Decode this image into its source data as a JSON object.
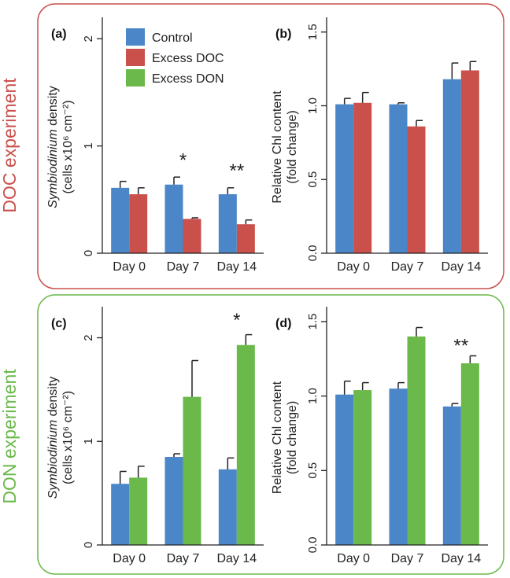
{
  "colors": {
    "control": "#4a86c8",
    "doc": "#c9504b",
    "don": "#6ab94a",
    "doc_frame": "#c9504b",
    "don_frame": "#6ab94a",
    "doc_title": "#c9504b",
    "don_title": "#6ab94a"
  },
  "legend": [
    "Control",
    "Excess DOC",
    "Excess DON"
  ],
  "experiments": [
    {
      "key": "doc",
      "title": "DOC experiment"
    },
    {
      "key": "don",
      "title": "DON experiment"
    }
  ],
  "chart_data": [
    {
      "panel": "(a)",
      "type": "bar",
      "experiment": "doc",
      "ylabel_italic": "Symbiodinium",
      "ylabel_rest": " density",
      "ylabel2": "(cells x10⁶ cm⁻²)",
      "categories": [
        "Day 0",
        "Day 7",
        "Day 14"
      ],
      "ylim": [
        0,
        2.2
      ],
      "yticks": [
        "0",
        "1",
        "2"
      ],
      "ytick_values": [
        0,
        1,
        2
      ],
      "series": [
        {
          "name": "Control",
          "color_key": "control",
          "values": [
            0.61,
            0.64,
            0.55
          ],
          "errors": [
            0.06,
            0.07,
            0.06
          ]
        },
        {
          "name": "Excess DOC",
          "color_key": "doc",
          "values": [
            0.55,
            0.32,
            0.27
          ],
          "errors": [
            0.06,
            0.01,
            0.04
          ]
        }
      ],
      "annotations": [
        {
          "category": 1,
          "text": "*",
          "y": 0.9
        },
        {
          "category": 2,
          "text": "**",
          "y": 0.8
        }
      ]
    },
    {
      "panel": "(b)",
      "type": "bar",
      "experiment": "doc",
      "ylabel": "Relative Chl content",
      "ylabel2": "(fold change)",
      "categories": [
        "Day 0",
        "Day 7",
        "Day 14"
      ],
      "ylim": [
        0,
        1.6
      ],
      "yticks": [
        "0.0",
        "0.5",
        "1.0",
        "1.5"
      ],
      "ytick_values": [
        0,
        0.5,
        1.0,
        1.5
      ],
      "series": [
        {
          "name": "Control",
          "color_key": "control",
          "values": [
            1.01,
            1.01,
            1.18
          ],
          "errors": [
            0.04,
            0.01,
            0.11
          ]
        },
        {
          "name": "Excess DOC",
          "color_key": "doc",
          "values": [
            1.02,
            0.86,
            1.24
          ],
          "errors": [
            0.07,
            0.04,
            0.06
          ]
        }
      ],
      "annotations": []
    },
    {
      "panel": "(c)",
      "type": "bar",
      "experiment": "don",
      "ylabel_italic": "Symbiodinium",
      "ylabel_rest": " density",
      "ylabel2": "(cells x10⁶ cm⁻²)",
      "categories": [
        "Day 0",
        "Day 7",
        "Day 14"
      ],
      "ylim": [
        0,
        2.3
      ],
      "yticks": [
        "0",
        "1",
        "2"
      ],
      "ytick_values": [
        0,
        1,
        2
      ],
      "series": [
        {
          "name": "Control",
          "color_key": "control",
          "values": [
            0.59,
            0.85,
            0.73
          ],
          "errors": [
            0.12,
            0.03,
            0.11
          ]
        },
        {
          "name": "Excess DON",
          "color_key": "don",
          "values": [
            0.65,
            1.43,
            1.93
          ],
          "errors": [
            0.11,
            0.35,
            0.1
          ]
        }
      ],
      "annotations": [
        {
          "category": 2,
          "text": "*",
          "y": 2.2
        }
      ]
    },
    {
      "panel": "(d)",
      "type": "bar",
      "experiment": "don",
      "ylabel": "Relative Chl content",
      "ylabel2": "(fold change)",
      "categories": [
        "Day 0",
        "Day 7",
        "Day 14"
      ],
      "ylim": [
        0,
        1.6
      ],
      "yticks": [
        "0.0",
        "0.5",
        "1.0",
        "1.5"
      ],
      "ytick_values": [
        0,
        0.5,
        1.0,
        1.5
      ],
      "series": [
        {
          "name": "Control",
          "color_key": "control",
          "values": [
            1.01,
            1.05,
            0.93
          ],
          "errors": [
            0.09,
            0.04,
            0.02
          ]
        },
        {
          "name": "Excess DON",
          "color_key": "don",
          "values": [
            1.04,
            1.4,
            1.22
          ],
          "errors": [
            0.05,
            0.06,
            0.05
          ]
        }
      ],
      "annotations": [
        {
          "category": 2,
          "text": "**",
          "y": 1.36
        }
      ]
    }
  ]
}
